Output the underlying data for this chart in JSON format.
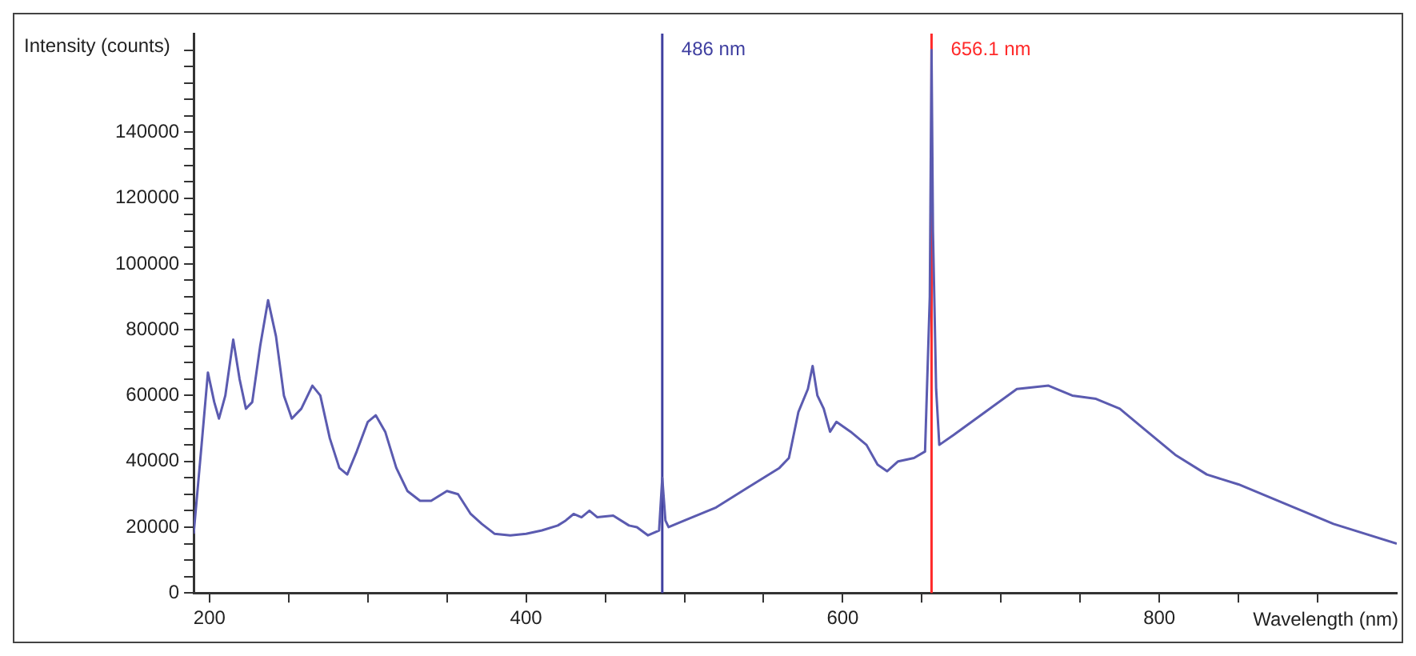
{
  "chart_data": {
    "type": "line",
    "xlabel": "Wavelength (nm)",
    "ylabel": "Intensity (counts)",
    "x": [
      190,
      195,
      199,
      203,
      206,
      210,
      215,
      219,
      223,
      227,
      232,
      237,
      242,
      247,
      252,
      258,
      265,
      270,
      276,
      282,
      287,
      293,
      300,
      305,
      311,
      318,
      325,
      333,
      340,
      350,
      357,
      365,
      372,
      380,
      390,
      400,
      410,
      420,
      425,
      430,
      435,
      440,
      445,
      455,
      465,
      470,
      477,
      484,
      486,
      488,
      490,
      500,
      520,
      540,
      560,
      566,
      572,
      578,
      581,
      584,
      588,
      592,
      596,
      605,
      615,
      622,
      628,
      635,
      645,
      652,
      655,
      656.1,
      657,
      659,
      661,
      670,
      690,
      710,
      730,
      745,
      760,
      775,
      790,
      810,
      830,
      850,
      880,
      910,
      950
    ],
    "series": [
      {
        "color": "#5b5bb0",
        "values": [
          18000,
          45000,
          67000,
          58000,
          53000,
          60000,
          77000,
          65000,
          56000,
          58000,
          75000,
          89000,
          78000,
          60000,
          53000,
          56000,
          63000,
          60000,
          47000,
          38000,
          36000,
          43000,
          52000,
          54000,
          49000,
          38000,
          31000,
          28000,
          28000,
          31000,
          30000,
          24000,
          21000,
          18000,
          17500,
          18000,
          19000,
          20500,
          22000,
          24000,
          23000,
          25000,
          23000,
          23500,
          20500,
          20000,
          17500,
          19000,
          35000,
          22000,
          20000,
          22000,
          26000,
          32000,
          38000,
          41000,
          55000,
          62000,
          69000,
          60000,
          56000,
          49000,
          52000,
          49000,
          45000,
          39000,
          37000,
          40000,
          41000,
          43000,
          90000,
          165000,
          110000,
          62000,
          45000,
          48000,
          55000,
          62000,
          63000,
          60000,
          59000,
          56000,
          50000,
          42000,
          36000,
          33000,
          27000,
          21000,
          15000
        ]
      }
    ],
    "xlim": [
      190,
      950
    ],
    "xticks": [
      200,
      {
        "value": 250,
        "label": null
      },
      {
        "value": 300,
        "label": null
      },
      {
        "value": 350,
        "label": null
      },
      400,
      {
        "value": 450,
        "label": null
      },
      {
        "value": 500,
        "label": null
      },
      {
        "value": 550,
        "label": null
      },
      600,
      {
        "value": 650,
        "label": null
      },
      {
        "value": 700,
        "label": null
      },
      {
        "value": 750,
        "label": null
      },
      800,
      {
        "value": 850,
        "label": null
      },
      {
        "value": 900,
        "label": null
      }
    ],
    "ylim": [
      0,
      170000
    ],
    "yticks": [
      0,
      {
        "value": 5000,
        "label": null
      },
      {
        "value": 10000,
        "label": null
      },
      {
        "value": 15000,
        "label": null
      },
      20000,
      {
        "value": 25000,
        "label": null
      },
      {
        "value": 30000,
        "label": null
      },
      {
        "value": 35000,
        "label": null
      },
      40000,
      {
        "value": 45000,
        "label": null
      },
      {
        "value": 50000,
        "label": null
      },
      {
        "value": 55000,
        "label": null
      },
      60000,
      {
        "value": 65000,
        "label": null
      },
      {
        "value": 70000,
        "label": null
      },
      {
        "value": 75000,
        "label": null
      },
      80000,
      {
        "value": 85000,
        "label": null
      },
      {
        "value": 90000,
        "label": null
      },
      {
        "value": 95000,
        "label": null
      },
      100000,
      {
        "value": 105000,
        "label": null
      },
      {
        "value": 110000,
        "label": null
      },
      {
        "value": 115000,
        "label": null
      },
      120000,
      {
        "value": 125000,
        "label": null
      },
      {
        "value": 130000,
        "label": null
      },
      {
        "value": 135000,
        "label": null
      },
      140000,
      {
        "value": 145000,
        "label": null
      },
      {
        "value": 150000,
        "label": null
      },
      {
        "value": 155000,
        "label": null
      },
      {
        "value": 160000,
        "label": null
      },
      {
        "value": 165000,
        "label": null
      }
    ],
    "ref_lines": [
      {
        "axis": "x",
        "value": 486,
        "label": "486 nm",
        "color": "#3f3fa0"
      },
      {
        "axis": "x",
        "value": 656.1,
        "label": "656.1 nm",
        "color": "#ff2a2a"
      }
    ],
    "grid": false,
    "legend": false,
    "marker": "none",
    "line_style": "solid"
  }
}
